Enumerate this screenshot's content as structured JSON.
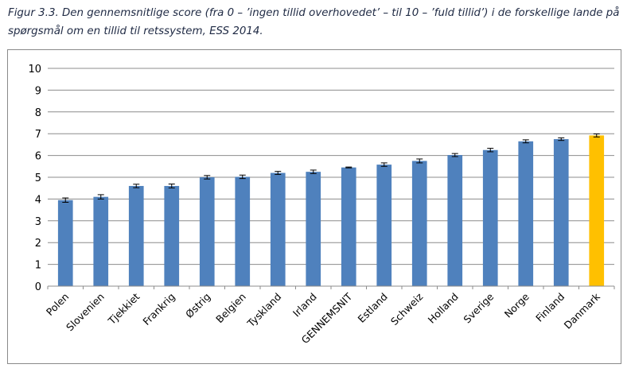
{
  "figure": {
    "caption": "Figur 3.3. Den gennemsnitlige score (fra 0 – ’ingen tillid overhovedet’ – til 10 – ’fuld tillid’) i de forskellige lande på spørgsmål om en tillid til retssystem, ESS 2014."
  },
  "chart_data": {
    "type": "bar",
    "title": "",
    "xlabel": "",
    "ylabel": "",
    "ylim": [
      0,
      10
    ],
    "yticks": [
      0,
      1,
      2,
      3,
      4,
      5,
      6,
      7,
      8,
      9,
      10
    ],
    "grid": true,
    "legend": "none",
    "error_bars": true,
    "colors": {
      "bar": "#4f81bd",
      "highlight": "#ffc000",
      "grid": "#8c8c8c",
      "error_bar": "#000000"
    },
    "highlight_category": "Danmark",
    "categories": [
      "Polen",
      "Slovenien",
      "Tjekkiet",
      "Frankrig",
      "Østrig",
      "Belgien",
      "Tyskland",
      "Irland",
      "GENNEMSNIT",
      "Estland",
      "Schweiz",
      "Holland",
      "Sverige",
      "Norge",
      "Finland",
      "Danmark"
    ],
    "values": [
      3.95,
      4.1,
      4.6,
      4.6,
      5.0,
      5.02,
      5.2,
      5.25,
      5.45,
      5.58,
      5.75,
      6.02,
      6.25,
      6.65,
      6.75,
      6.92
    ],
    "errors": [
      0.1,
      0.1,
      0.08,
      0.09,
      0.08,
      0.08,
      0.07,
      0.08,
      0.02,
      0.08,
      0.09,
      0.07,
      0.08,
      0.07,
      0.06,
      0.07
    ]
  }
}
